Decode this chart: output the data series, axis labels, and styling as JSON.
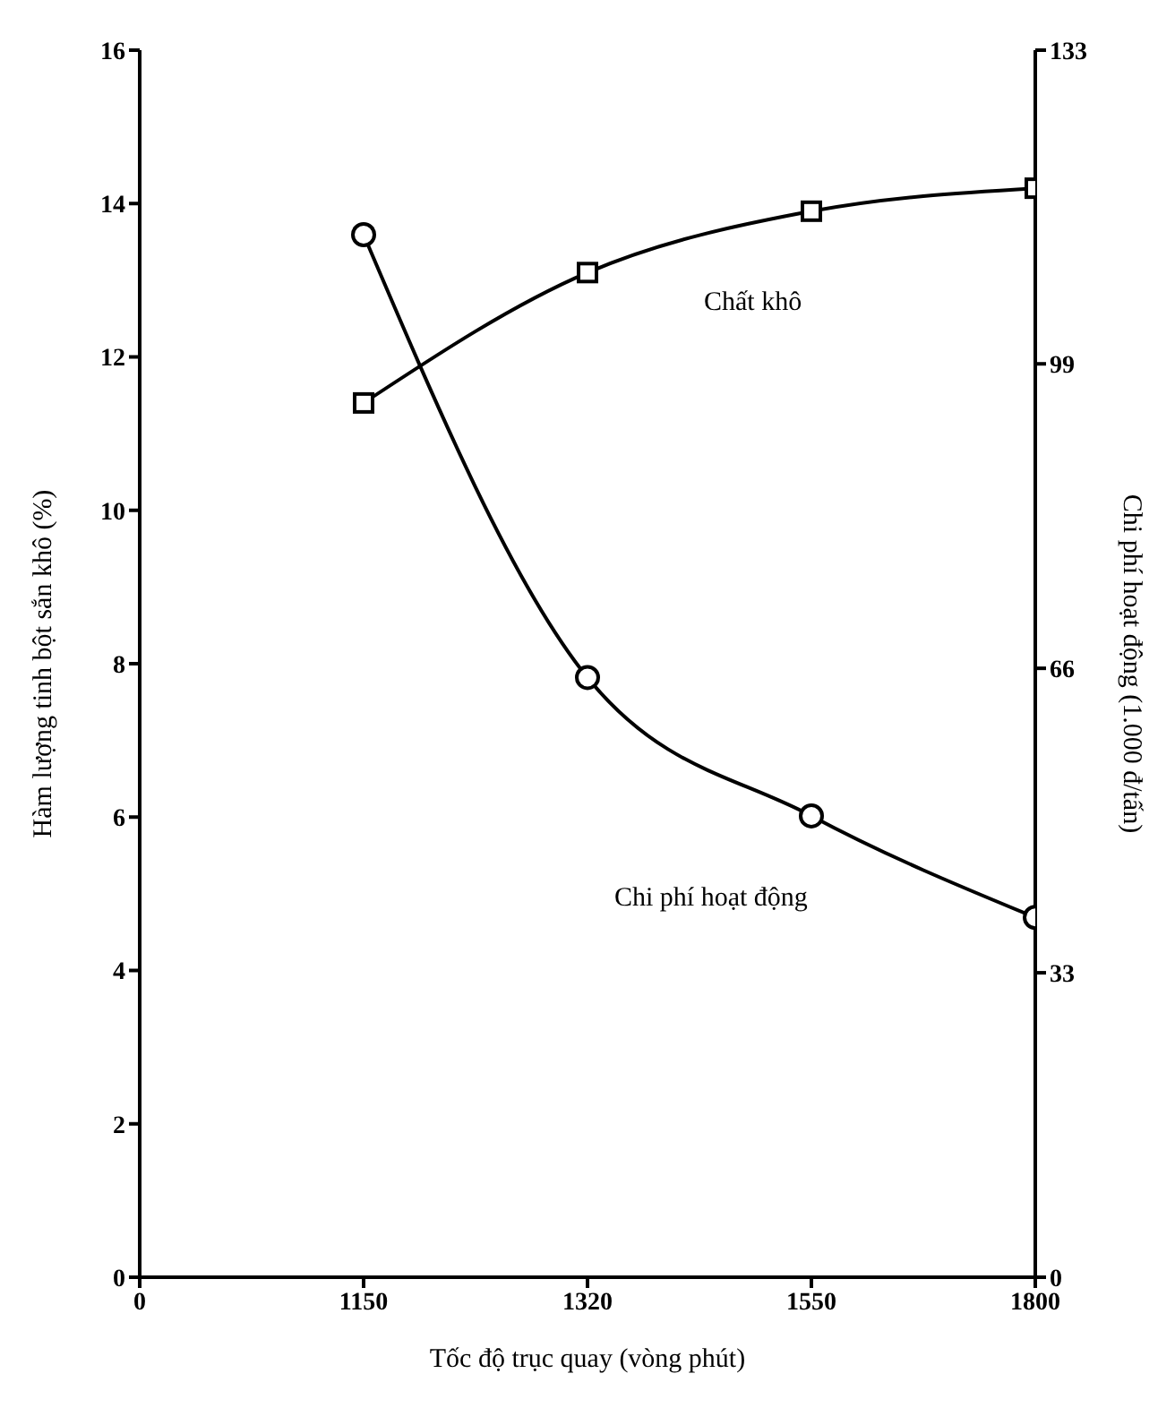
{
  "chart_data": {
    "type": "line",
    "xlabel": "Tốc độ trục quay (vòng phút)",
    "ylabel": "Hàm lượng tinh bột sắn khô (%)",
    "y2label": "Chi phí hoạt động (1.000 đ/tấn)",
    "categories": [
      "0",
      "1150",
      "1320",
      "1550",
      "1800"
    ],
    "ylim": [
      0,
      16
    ],
    "yticks": [
      0,
      2,
      4,
      6,
      8,
      10,
      12,
      14,
      16
    ],
    "y2lim": [
      0,
      133
    ],
    "y2ticks": [
      0,
      33,
      66,
      99,
      133
    ],
    "series": [
      {
        "name": "Chất khô",
        "color": "#000000",
        "marker": "square",
        "values": [
          null,
          11.4,
          13.1,
          13.9,
          14.2
        ]
      },
      {
        "name": "Chi phí hoạt động",
        "color": "#000000",
        "marker": "circle",
        "axis": "y2",
        "values": [
          null,
          113,
          65,
          50,
          39
        ]
      }
    ]
  }
}
